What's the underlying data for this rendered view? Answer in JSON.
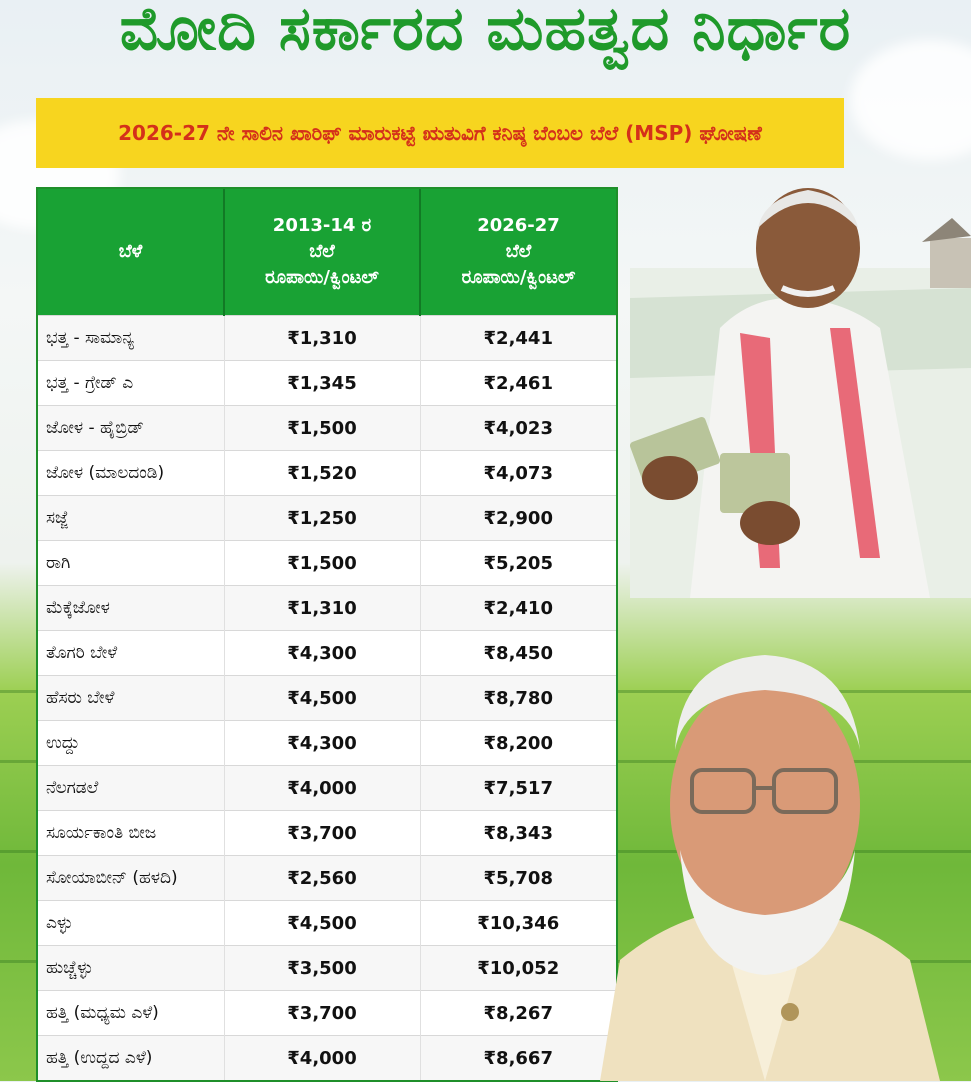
{
  "header": {
    "title": "ಮೋದಿ ಸರ್ಕಾರದ ಮಹತ್ವದ ನಿರ್ಧಾರ",
    "subtitle": "2026-27 ನೇ ಸಾಲಿನ ಖಾರಿಫ್ ಮಾರುಕಟ್ಟೆ ಋತುವಿಗೆ ಕನಿಷ್ಠ ಬೆಂಬಲ ಬೆಲೆ (MSP) ಘೋಷಣೆ"
  },
  "table": {
    "headers": {
      "crop": "ಬೆಳೆ",
      "old_line1": "2013-14 ರ",
      "old_line2": "ಬೆಲೆ",
      "old_line3": "ರೂಪಾಯಿ/ಕ್ವಿಂಟಲ್",
      "new_line1": "2026-27",
      "new_line2": "ಬೆಲೆ",
      "new_line3": "ರೂಪಾಯಿ/ಕ್ವಿಂಟಲ್"
    },
    "rows": [
      {
        "crop": "ಭತ್ತ - ಸಾಮಾನ್ಯ",
        "old": "₹1,310",
        "new": "₹2,441"
      },
      {
        "crop": "ಭತ್ತ - ಗ್ರೇಡ್ ಎ",
        "old": "₹1,345",
        "new": "₹2,461"
      },
      {
        "crop": "ಜೋಳ - ಹೈಬ್ರಿಡ್",
        "old": "₹1,500",
        "new": "₹4,023"
      },
      {
        "crop": "ಜೋಳ (ಮಾಲದಂಡಿ)",
        "old": "₹1,520",
        "new": "₹4,073"
      },
      {
        "crop": "ಸಜ್ಜೆ",
        "old": "₹1,250",
        "new": "₹2,900"
      },
      {
        "crop": "ರಾಗಿ",
        "old": "₹1,500",
        "new": "₹5,205"
      },
      {
        "crop": "ಮೆಕ್ಕೆಜೋಳ",
        "old": "₹1,310",
        "new": "₹2,410"
      },
      {
        "crop": "ತೊಗರಿ ಬೇಳೆ",
        "old": "₹4,300",
        "new": "₹8,450"
      },
      {
        "crop": "ಹೆಸರು ಬೇಳೆ",
        "old": "₹4,500",
        "new": "₹8,780"
      },
      {
        "crop": "ಉದ್ದು",
        "old": "₹4,300",
        "new": "₹8,200"
      },
      {
        "crop": "ನೆಲಗಡಲೆ",
        "old": "₹4,000",
        "new": "₹7,517"
      },
      {
        "crop": "ಸೂರ್ಯಕಾಂತಿ ಬೀಜ",
        "old": "₹3,700",
        "new": "₹8,343"
      },
      {
        "crop": "ಸೋಯಾಬೀನ್ (ಹಳದಿ)",
        "old": "₹2,560",
        "new": "₹5,708"
      },
      {
        "crop": "ಎಳ್ಳು",
        "old": "₹4,500",
        "new": "₹10,346"
      },
      {
        "crop": "ಹುಚ್ಚೆಳ್ಳು",
        "old": "₹3,500",
        "new": "₹10,052"
      },
      {
        "crop": "ಹತ್ತಿ (ಮಧ್ಯಮ ಎಳೆ)",
        "old": "₹3,700",
        "new": "₹8,267"
      },
      {
        "crop": "ಹತ್ತಿ (ಉದ್ದದ ಎಳೆ)",
        "old": "₹4,000",
        "new": "₹8,667"
      }
    ]
  },
  "colors": {
    "title_green": "#1f9a2a",
    "banner_yellow": "#f7d51f",
    "banner_text": "#d4301a",
    "header_green": "#19a234"
  }
}
